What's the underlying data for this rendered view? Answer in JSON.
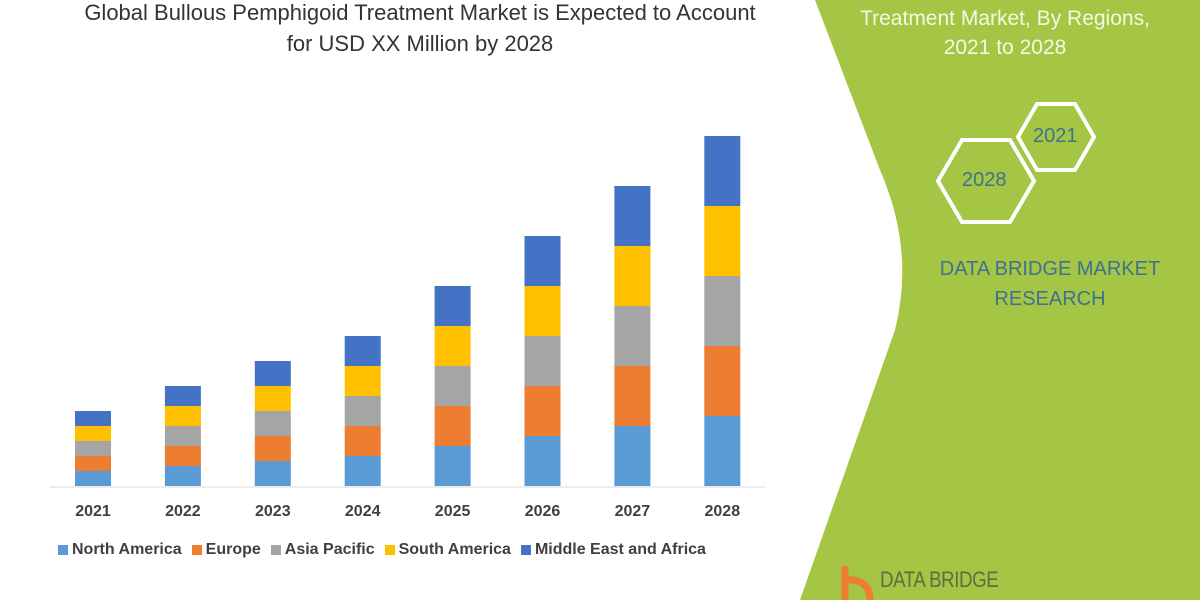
{
  "header": {
    "title_line1": "Global Bullous Pemphigoid Treatment Market is Expected to Account",
    "title_line2": "for USD XX Million by 2028"
  },
  "side_panel": {
    "title_line2": "Treatment Market, By Regions,",
    "title_line3": "2021 to 2028",
    "hex_labels": [
      "2021",
      "2028"
    ],
    "brand_line1": "DATA BRIDGE MARKET",
    "brand_line2": "RESEARCH",
    "logo_text": "DATA BRIDGE",
    "panel_color": "#a5c544"
  },
  "chart_data": {
    "type": "bar",
    "stacked": true,
    "title": "Global Bullous Pemphigoid Treatment Market is Expected to Account for USD XX Million by 2028",
    "xlabel": "",
    "ylabel": "",
    "y_axis_shown": false,
    "grid": false,
    "legend_position": "bottom",
    "ylim": [
      0,
      355
    ],
    "categories": [
      "2021",
      "2022",
      "2023",
      "2024",
      "2025",
      "2026",
      "2027",
      "2028"
    ],
    "series": [
      {
        "name": "North America",
        "color": "#5b9bd5",
        "values": [
          15,
          20,
          25,
          30,
          40,
          50,
          60,
          70
        ]
      },
      {
        "name": "Europe",
        "color": "#ed7d31",
        "values": [
          15,
          20,
          25,
          30,
          40,
          50,
          60,
          70
        ]
      },
      {
        "name": "Asia Pacific",
        "color": "#a5a5a5",
        "values": [
          15,
          20,
          25,
          30,
          40,
          50,
          60,
          70
        ]
      },
      {
        "name": "South America",
        "color": "#ffc000",
        "values": [
          15,
          20,
          25,
          30,
          40,
          50,
          60,
          70
        ]
      },
      {
        "name": "Middle East and Africa",
        "color": "#4472c4",
        "values": [
          15,
          20,
          25,
          30,
          40,
          50,
          60,
          70
        ]
      }
    ]
  }
}
